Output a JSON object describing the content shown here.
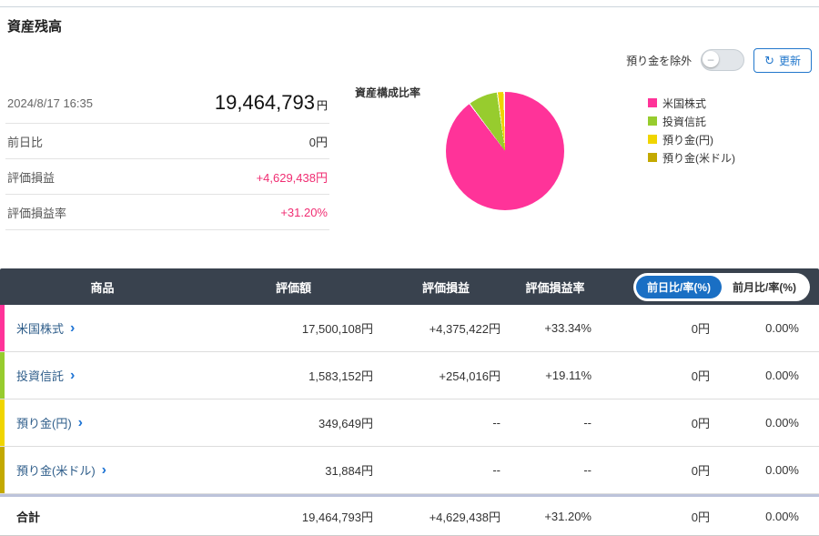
{
  "page": {
    "title": "資産残高"
  },
  "controls": {
    "toggle_label": "預り金を除外",
    "refresh_button": "更新",
    "refresh_icon": "↻",
    "toggle_state": "off"
  },
  "summary": {
    "timestamp": "2024/8/17 16:35",
    "total_value": "19,464,793",
    "currency_suffix": "円",
    "rows": [
      {
        "label": "前日比",
        "value": "0円",
        "positive": false
      },
      {
        "label": "評価損益",
        "value": "+4,629,438円",
        "positive": true
      },
      {
        "label": "評価損益率",
        "value": "+31.20%",
        "positive": true
      }
    ]
  },
  "chart_data": {
    "type": "pie",
    "title": "資産構成比率",
    "labels": [
      "米国株式",
      "投資信託",
      "預り金(円)",
      "預り金(米ドル)"
    ],
    "values": [
      17500108,
      1583152,
      349649,
      31884
    ],
    "percentages": [
      89.91,
      8.13,
      1.8,
      0.16
    ],
    "colors": [
      "#ff3399",
      "#97cc2e",
      "#f0d500",
      "#c3a900"
    ],
    "legend_position": "right"
  },
  "table": {
    "headers": [
      "商品",
      "評価額",
      "評価損益",
      "評価損益率"
    ],
    "period_toggle": {
      "active": "前日比/率(%)",
      "inactive": "前月比/率(%)"
    },
    "chevron": "›",
    "rows": [
      {
        "product": "米国株式",
        "color": "#ff3399",
        "valuation": "17,500,108円",
        "pl": "+4,375,422円",
        "pl_rate": "+33.34%",
        "day_change": "0円",
        "day_rate": "0.00%",
        "pl_positive": true
      },
      {
        "product": "投資信託",
        "color": "#97cc2e",
        "valuation": "1,583,152円",
        "pl": "+254,016円",
        "pl_rate": "+19.11%",
        "day_change": "0円",
        "day_rate": "0.00%",
        "pl_positive": true
      },
      {
        "product": "預り金(円)",
        "color": "#f0d500",
        "valuation": "349,649円",
        "pl": "--",
        "pl_rate": "--",
        "day_change": "0円",
        "day_rate": "0.00%",
        "pl_positive": false
      },
      {
        "product": "預り金(米ドル)",
        "color": "#c3a900",
        "valuation": "31,884円",
        "pl": "--",
        "pl_rate": "--",
        "day_change": "0円",
        "day_rate": "0.00%",
        "pl_positive": false
      }
    ],
    "total_row": {
      "label": "合計",
      "valuation": "19,464,793円",
      "pl": "+4,629,438円",
      "pl_rate": "+31.20%",
      "day_change": "0円",
      "day_rate": "0.00%",
      "pl_positive": true
    }
  },
  "colors": {
    "positive_text": "#f02d72",
    "accent_blue": "#1a6fc4",
    "table_header_bg": "#39424e",
    "total_separator": "#bcc3da"
  }
}
